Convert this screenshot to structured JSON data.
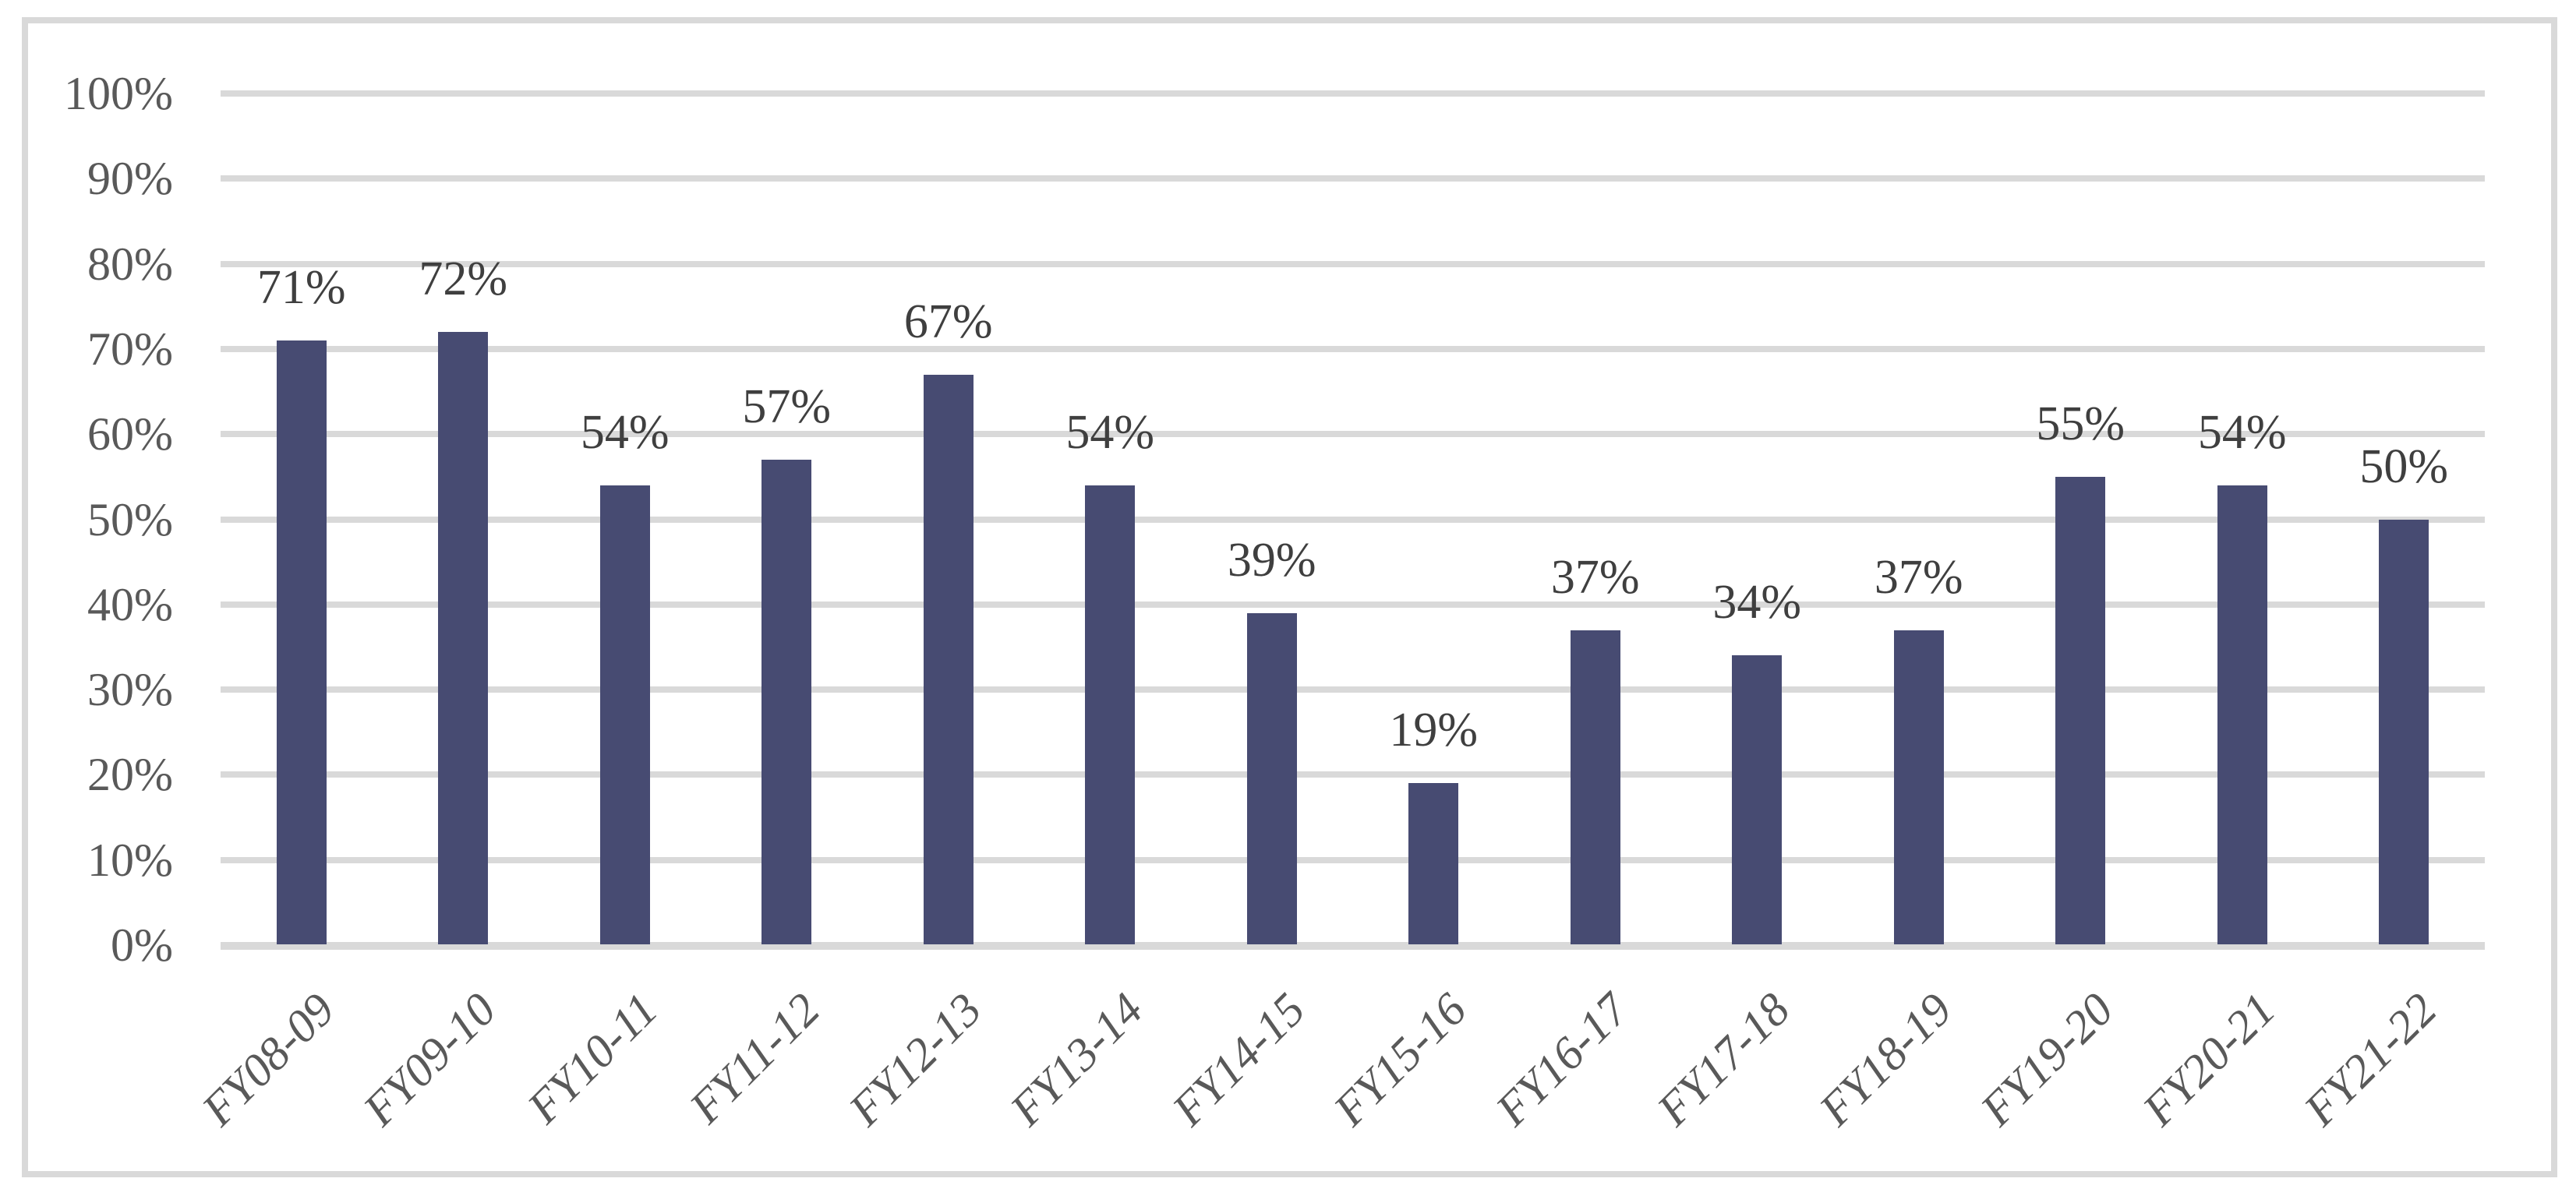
{
  "chart_data": {
    "type": "bar",
    "title": "",
    "xlabel": "",
    "ylabel": "",
    "categories": [
      "FY08-09",
      "FY09-10",
      "FY10-11",
      "FY11-12",
      "FY12-13",
      "FY13-14",
      "FY14-15",
      "FY15-16",
      "FY16-17",
      "FY17-18",
      "FY18-19",
      "FY19-20",
      "FY20-21",
      "FY21-22"
    ],
    "values": [
      71,
      72,
      54,
      57,
      67,
      54,
      39,
      19,
      37,
      34,
      37,
      55,
      54,
      50
    ],
    "data_labels": [
      "71%",
      "72%",
      "54%",
      "57%",
      "67%",
      "54%",
      "39%",
      "19%",
      "37%",
      "34%",
      "37%",
      "55%",
      "54%",
      "50%"
    ],
    "y_ticks": [
      "0%",
      "10%",
      "20%",
      "30%",
      "40%",
      "50%",
      "60%",
      "70%",
      "80%",
      "90%",
      "100%"
    ],
    "y_tick_values": [
      0,
      10,
      20,
      30,
      40,
      50,
      60,
      70,
      80,
      90,
      100
    ],
    "ylim": [
      0,
      100
    ],
    "grid": true,
    "legend": "none",
    "colors": {
      "bar": "#474B72",
      "gridline": "#D9D9D9",
      "chart_border": "#D9D9D9",
      "axis_line": "#D9D9D9",
      "axis_label": "#595959",
      "data_label": "#3F3F3F",
      "background": "#FFFFFF"
    }
  }
}
